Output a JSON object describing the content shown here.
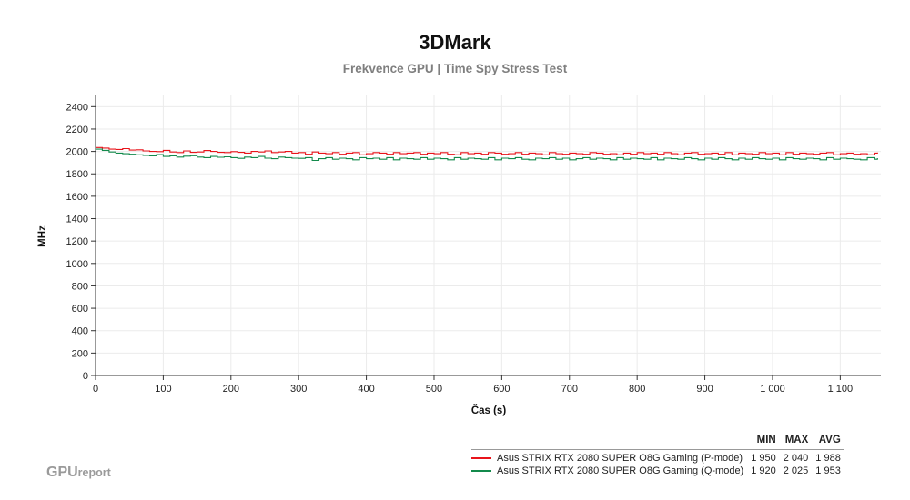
{
  "chart_data": {
    "type": "line",
    "title": "3DMark",
    "subtitle": "Frekvence GPU | Time Spy Stress Test",
    "xlabel": "Čas (s)",
    "ylabel": "MHz",
    "xlim": [
      0,
      1160
    ],
    "ylim": [
      0,
      2500
    ],
    "x_ticks": [
      0,
      100,
      200,
      300,
      400,
      500,
      600,
      700,
      800,
      900,
      1000,
      1100
    ],
    "x_tick_labels": [
      "0",
      "100",
      "200",
      "300",
      "400",
      "500",
      "600",
      "700",
      "800",
      "900",
      "1 000",
      "1 100"
    ],
    "y_ticks": [
      0,
      200,
      400,
      600,
      800,
      1000,
      1200,
      1400,
      1600,
      1800,
      2000,
      2200,
      2400
    ],
    "y_tick_labels": [
      "0",
      "200",
      "400",
      "600",
      "800",
      "1000",
      "1200",
      "1400",
      "1600",
      "1800",
      "2000",
      "2200",
      "2400"
    ],
    "grid": true,
    "x": [
      0,
      10,
      20,
      30,
      40,
      50,
      60,
      70,
      80,
      90,
      100,
      110,
      120,
      130,
      140,
      150,
      160,
      170,
      180,
      190,
      200,
      210,
      220,
      230,
      240,
      250,
      260,
      270,
      280,
      290,
      300,
      310,
      320,
      330,
      340,
      350,
      360,
      370,
      380,
      390,
      400,
      410,
      420,
      430,
      440,
      450,
      460,
      470,
      480,
      490,
      500,
      510,
      520,
      530,
      540,
      550,
      560,
      570,
      580,
      590,
      600,
      610,
      620,
      630,
      640,
      650,
      660,
      670,
      680,
      690,
      700,
      710,
      720,
      730,
      740,
      750,
      760,
      770,
      780,
      790,
      800,
      810,
      820,
      830,
      840,
      850,
      860,
      870,
      880,
      890,
      900,
      910,
      920,
      930,
      940,
      950,
      960,
      970,
      980,
      990,
      1000,
      1010,
      1020,
      1030,
      1040,
      1050,
      1060,
      1070,
      1080,
      1090,
      1100,
      1110,
      1120,
      1130,
      1140,
      1150,
      1155
    ],
    "series": [
      {
        "name": "Asus STRIX RTX 2080 SUPER O8G Gaming (P-mode)",
        "color": "#e8141b",
        "values": [
          2035,
          2030,
          2020,
          2018,
          2025,
          2012,
          2015,
          2005,
          2000,
          1998,
          2010,
          1995,
          1990,
          2005,
          1992,
          1995,
          2008,
          2000,
          1992,
          1990,
          1998,
          1992,
          1985,
          2000,
          1995,
          2005,
          1990,
          1995,
          2000,
          1985,
          1990,
          1975,
          1995,
          1985,
          1980,
          1990,
          1975,
          1985,
          1990,
          1970,
          1980,
          1990,
          1985,
          1975,
          1990,
          1980,
          1985,
          1990,
          1975,
          1985,
          1980,
          1990,
          1975,
          1970,
          1990,
          1980,
          1985,
          1975,
          1990,
          1985,
          1975,
          1980,
          1990,
          1975,
          1985,
          1980,
          1970,
          1990,
          1980,
          1975,
          1985,
          1980,
          1975,
          1990,
          1985,
          1975,
          1980,
          1970,
          1985,
          1975,
          1990,
          1980,
          1985,
          1975,
          1990,
          1980,
          1970,
          1985,
          1990,
          1975,
          1980,
          1985,
          1975,
          1990,
          1970,
          1985,
          1980,
          1975,
          1990,
          1980,
          1985,
          1970,
          1990,
          1975,
          1985,
          1980,
          1975,
          1985,
          1990,
          1970,
          1980,
          1985,
          1975,
          1980,
          1970,
          1985,
          1990
        ]
      },
      {
        "name": "Asus STRIX RTX 2080 SUPER O8G Gaming (Q-mode)",
        "color": "#138a4c",
        "values": [
          2020,
          2010,
          1995,
          1985,
          1980,
          1975,
          1970,
          1965,
          1960,
          1972,
          1955,
          1960,
          1950,
          1958,
          1962,
          1950,
          1945,
          1955,
          1948,
          1952,
          1945,
          1938,
          1950,
          1945,
          1955,
          1940,
          1935,
          1950,
          1945,
          1940,
          1938,
          1945,
          1920,
          1935,
          1945,
          1930,
          1940,
          1935,
          1925,
          1945,
          1935,
          1940,
          1930,
          1945,
          1925,
          1940,
          1935,
          1930,
          1945,
          1930,
          1940,
          1935,
          1925,
          1945,
          1930,
          1940,
          1935,
          1930,
          1945,
          1925,
          1940,
          1935,
          1945,
          1930,
          1925,
          1940,
          1935,
          1945,
          1930,
          1940,
          1925,
          1935,
          1945,
          1930,
          1940,
          1935,
          1925,
          1945,
          1930,
          1940,
          1935,
          1930,
          1945,
          1925,
          1940,
          1935,
          1930,
          1945,
          1935,
          1925,
          1940,
          1930,
          1945,
          1935,
          1925,
          1940,
          1930,
          1945,
          1935,
          1930,
          1940,
          1925,
          1945,
          1935,
          1930,
          1940,
          1935,
          1925,
          1945,
          1930,
          1940,
          1935,
          1930,
          1925,
          1945,
          1930,
          1940
        ]
      }
    ]
  },
  "stats": {
    "headers": [
      "MIN",
      "MAX",
      "AVG"
    ],
    "rows": [
      {
        "name": "Asus STRIX RTX 2080 SUPER O8G Gaming (P-mode)",
        "color": "#e8141b",
        "min": "1 950",
        "max": "2 040",
        "avg": "1 988"
      },
      {
        "name": "Asus STRIX RTX 2080 SUPER O8G Gaming (Q-mode)",
        "color": "#138a4c",
        "min": "1 920",
        "max": "2 025",
        "avg": "1 953"
      }
    ]
  },
  "brand": {
    "main": "GPU",
    "small": "report",
    "color": "#9a9a9a"
  }
}
